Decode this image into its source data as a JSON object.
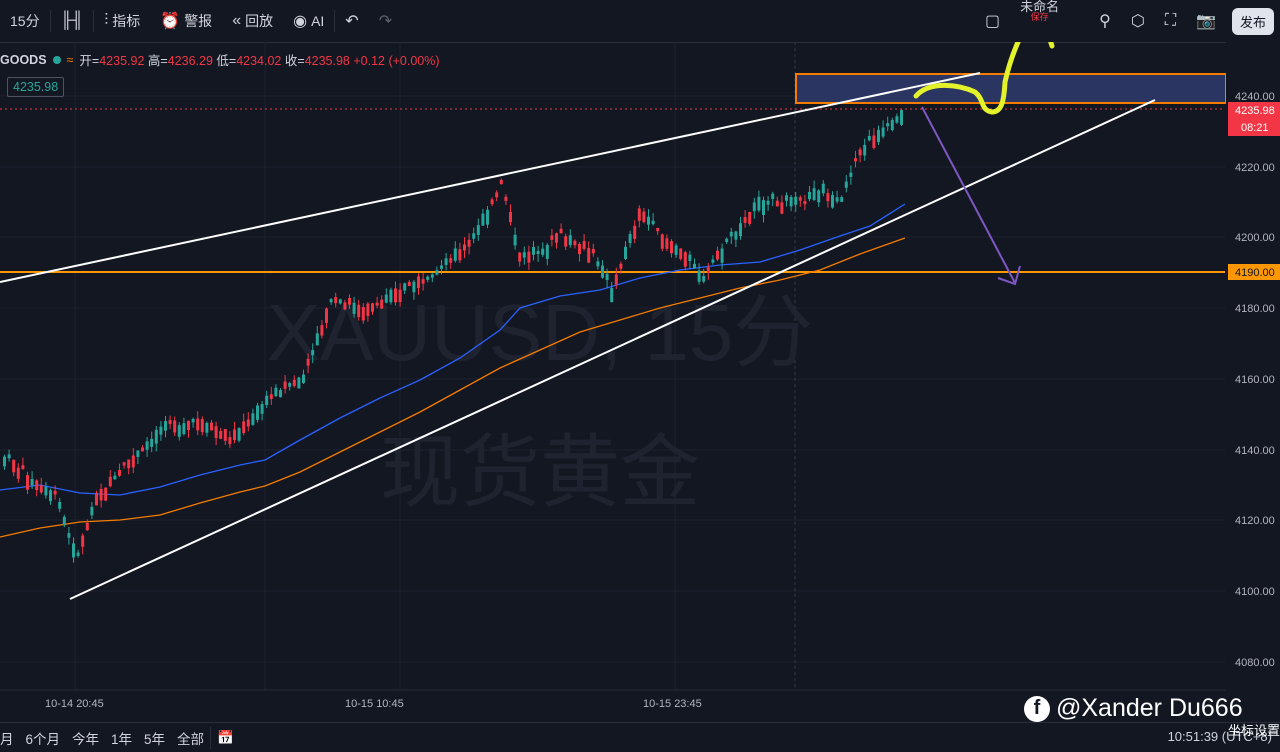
{
  "toolbar": {
    "interval": "15分",
    "indicators": "指标",
    "alerts": "警报",
    "replay": "回放",
    "ai": "AI",
    "layout_name": "未命名",
    "layout_sub": "保存",
    "publish": "发布"
  },
  "legend": {
    "symbol": "GOODS",
    "open_label": "开=",
    "open": "4235.92",
    "high_label": "高=",
    "high": "4236.29",
    "low_label": "低=",
    "low": "4234.02",
    "close_label": "收=",
    "close": "4235.98",
    "change": "+0.12 (+0.00%)",
    "last_price": "4235.98"
  },
  "watermark": {
    "line1": "XAUUSD, 15分",
    "line2": "现货黄金"
  },
  "price_axis": {
    "ticks": [
      "4240.00",
      "4220.00",
      "4200.00",
      "4180.00",
      "4160.00",
      "4140.00",
      "4120.00",
      "4100.00",
      "4080.00"
    ],
    "current_price": "4235.98",
    "countdown": "08:21",
    "level_label": "4190.00"
  },
  "time_axis": {
    "ticks": [
      "10-14 20:45",
      "10-15 10:45",
      "10-15 23:45"
    ]
  },
  "bottom_bar": {
    "ranges": [
      "月",
      "6个月",
      "今年",
      "1年",
      "5年",
      "全部"
    ],
    "clock": "10:51:39",
    "timezone": "(UTC+8)"
  },
  "overlay": {
    "credit": "@Xander Du666",
    "axis_settings": "坐标设置"
  },
  "colors": {
    "up": "#26a69a",
    "down": "#f23645",
    "ma_fast": "#2962ff",
    "ma_slow": "#f57c00",
    "level": "#ff9800",
    "arrow_down": "#7e57c2",
    "arrow_up": "#e3f22a"
  }
}
